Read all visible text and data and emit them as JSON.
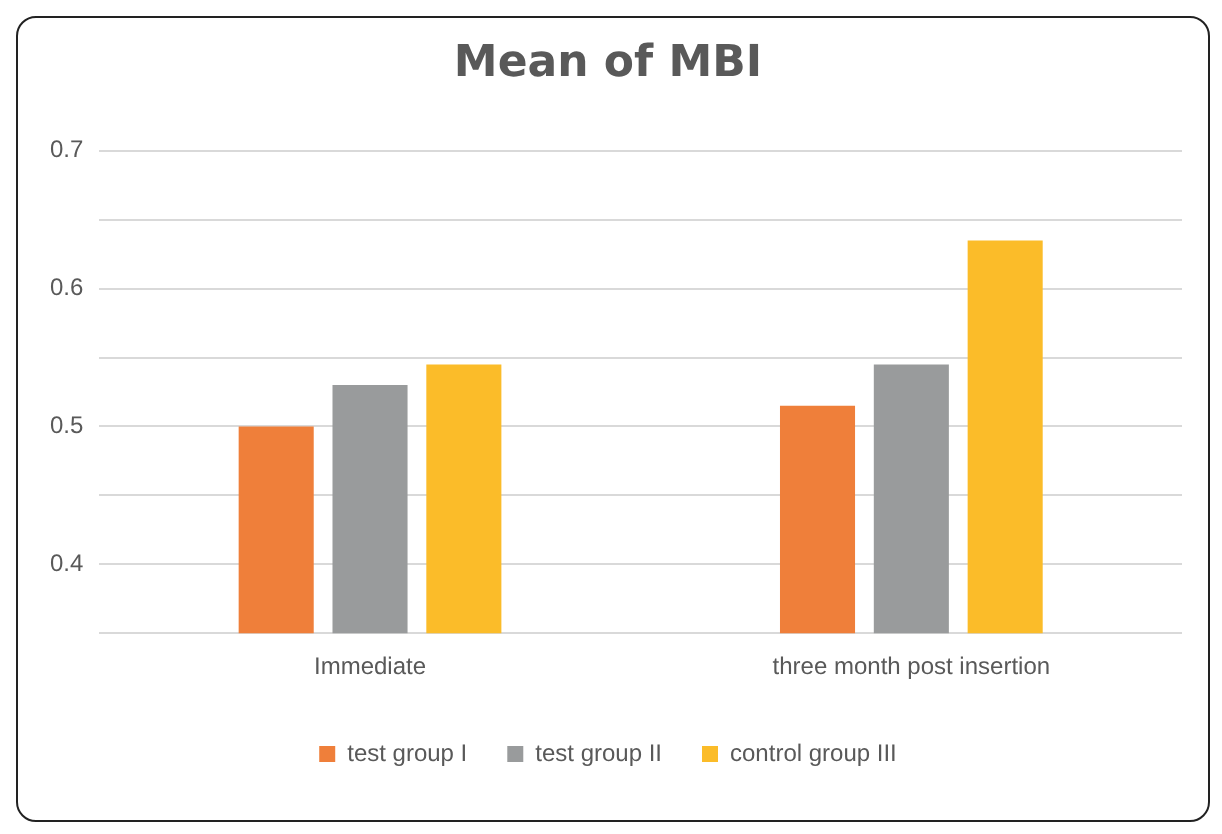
{
  "chart_data": {
    "type": "bar",
    "title": "Mean of MBI",
    "categories": [
      "Immediate",
      "three month post insertion"
    ],
    "series": [
      {
        "name": "test group I",
        "color": "#ef7f3a",
        "values": [
          0.5,
          0.515
        ]
      },
      {
        "name": "test group II",
        "color": "#999b9c",
        "values": [
          0.53,
          0.545
        ]
      },
      {
        "name": "control group III",
        "color": "#fbbc29",
        "values": [
          0.545,
          0.635
        ]
      }
    ],
    "ylim": [
      0.35,
      0.7
    ],
    "yticks": [
      {
        "value": 0.35,
        "label": null
      },
      0.4,
      {
        "value": 0.45,
        "label": null
      },
      0.5,
      {
        "value": 0.55,
        "label": null
      },
      0.6,
      {
        "value": 0.65,
        "label": null
      },
      0.7
    ],
    "grid": "y",
    "legend": "bottom"
  }
}
